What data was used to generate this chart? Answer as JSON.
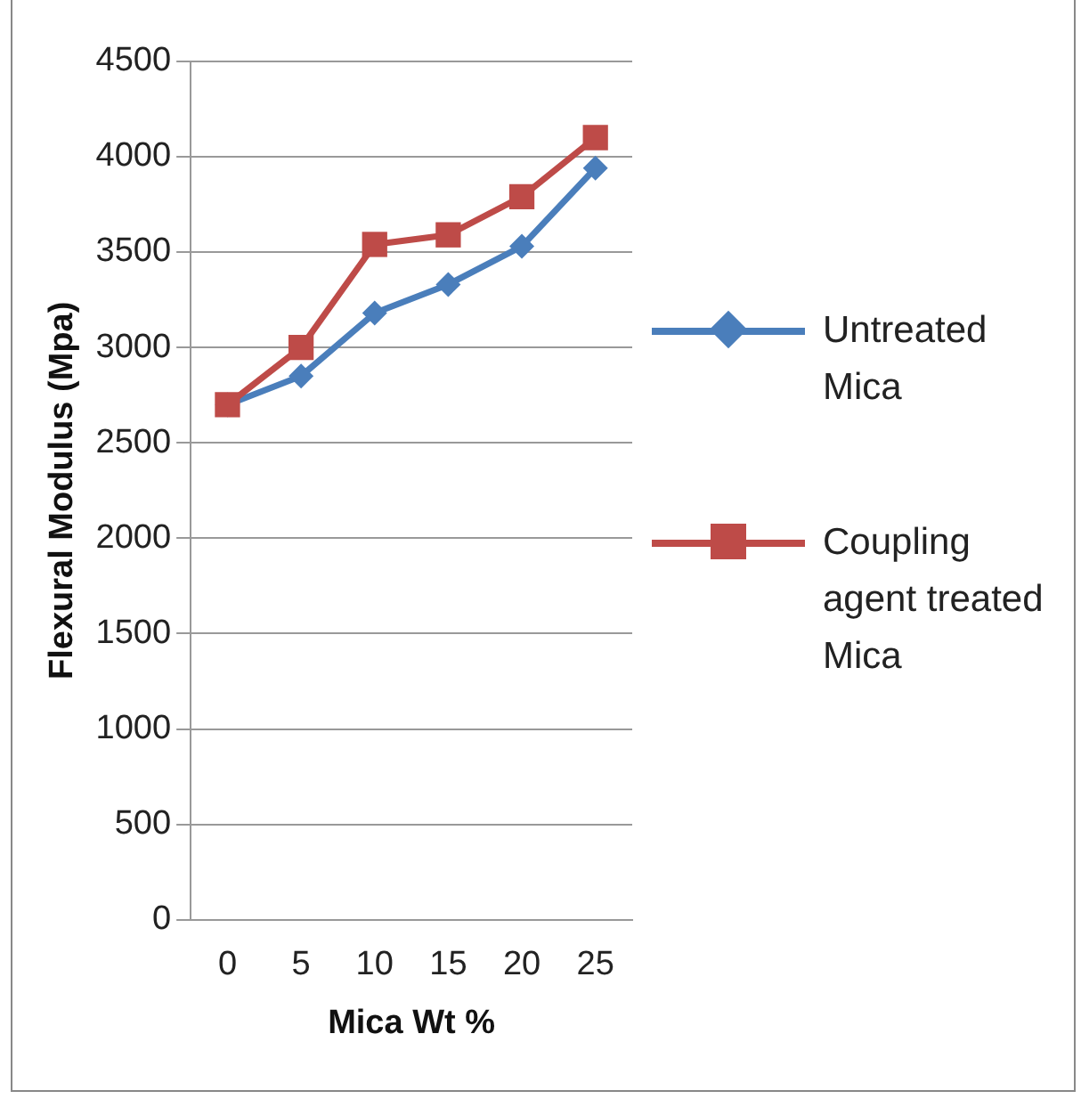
{
  "chart_data": {
    "type": "line",
    "xlabel": "Mica Wt %",
    "ylabel": "Flexural Modulus (Mpa)",
    "categories": [
      "0",
      "5",
      "10",
      "15",
      "20",
      "25"
    ],
    "series": [
      {
        "name": "Untreated Mica",
        "color": "#4a7ebb",
        "marker": "diamond",
        "values": [
          2700,
          2850,
          3180,
          3330,
          3530,
          3940
        ]
      },
      {
        "name": "Coupling agent treated Mica",
        "color": "#be4b48",
        "marker": "square",
        "values": [
          2700,
          3000,
          3540,
          3590,
          3790,
          4100
        ]
      }
    ],
    "ylim": [
      0,
      4500
    ],
    "yticks": [
      0,
      500,
      1000,
      1500,
      2000,
      2500,
      3000,
      3500,
      4000,
      4500
    ],
    "grid": "y",
    "legend": "right"
  }
}
